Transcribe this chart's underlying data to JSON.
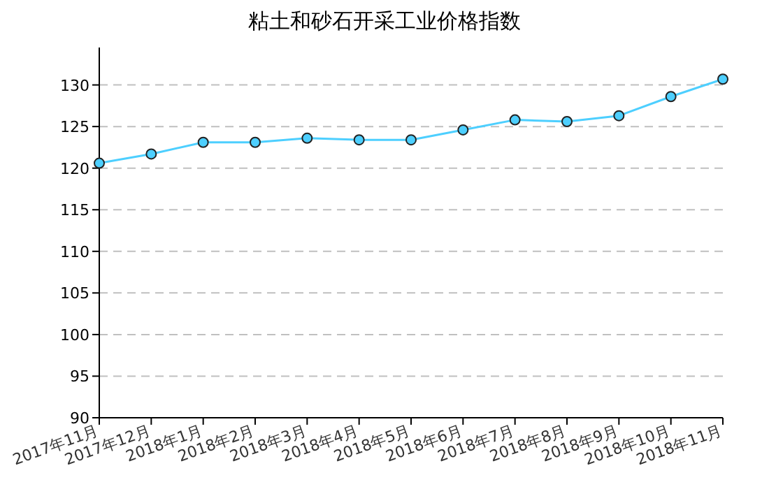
{
  "chart_data": {
    "type": "line",
    "title": "粘土和砂石开采工业价格指数",
    "categories": [
      "2017年11月",
      "2017年12月",
      "2018年1月",
      "2018年2月",
      "2018年3月",
      "2018年4月",
      "2018年5月",
      "2018年6月",
      "2018年7月",
      "2018年8月",
      "2018年9月",
      "2018年10月",
      "2018年11月"
    ],
    "series": [
      {
        "color": "#4dcfff",
        "values": [
          120.6,
          121.7,
          123.1,
          123.1,
          123.6,
          123.4,
          123.4,
          124.6,
          125.8,
          125.6,
          126.3,
          128.6,
          130.7
        ]
      }
    ],
    "ylim": [
      90,
      134.5
    ],
    "yticks": [
      90,
      95,
      100,
      105,
      110,
      115,
      120,
      125,
      130
    ],
    "grid": "y",
    "marker": "circle"
  }
}
